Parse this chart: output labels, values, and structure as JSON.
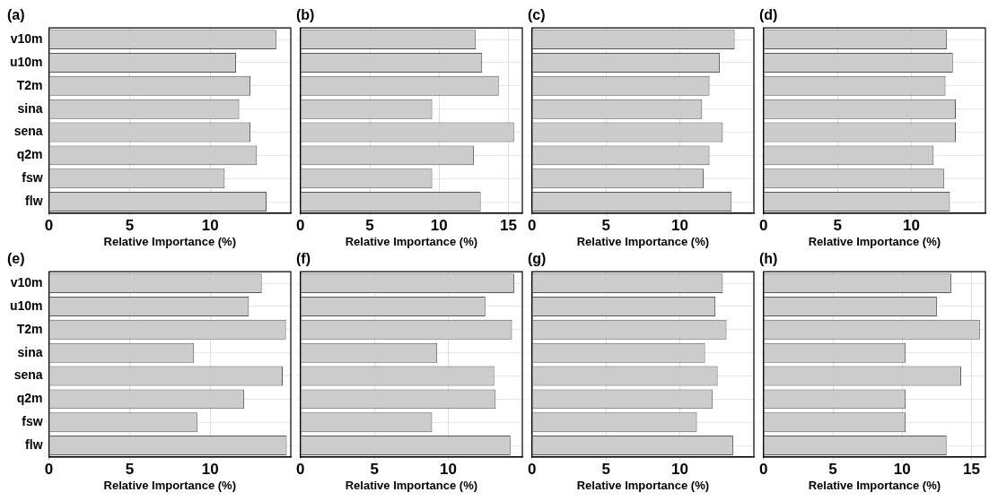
{
  "chart_data": [
    {
      "type": "bar",
      "orientation": "horizontal",
      "title": "(a)",
      "xlabel": "Relative Importance (%)",
      "categories": [
        "v10m",
        "u10m",
        "T2m",
        "sina",
        "sena",
        "q2m",
        "fsw",
        "flw"
      ],
      "values": [
        14.1,
        11.6,
        12.5,
        11.8,
        12.5,
        12.9,
        10.9,
        13.5
      ],
      "color": "#cccccc",
      "xlim": [
        0,
        15
      ],
      "xticks": [
        0,
        5,
        10
      ],
      "grid": true
    },
    {
      "type": "bar",
      "orientation": "horizontal",
      "title": "(b)",
      "xlabel": "Relative Importance (%)",
      "categories": [
        null,
        null,
        null,
        null,
        null,
        null,
        null,
        null
      ],
      "values": [
        12.65,
        13.1,
        14.3,
        9.5,
        15.4,
        12.5,
        9.5,
        13.0
      ],
      "color": "#cccccc",
      "xlim": [
        0,
        16
      ],
      "xticks": [
        0,
        5,
        10,
        15
      ],
      "grid": true,
      "tick_labels": "x"
    },
    {
      "type": "bar",
      "orientation": "horizontal",
      "title": "(c)",
      "xlabel": "Relative Importance (%)",
      "categories": [
        null,
        null,
        null,
        null,
        null,
        null,
        null,
        null
      ],
      "values": [
        13.7,
        12.7,
        12.0,
        11.5,
        12.9,
        12.0,
        11.6,
        13.5
      ],
      "color": "#cccccc",
      "xlim": [
        0,
        15
      ],
      "xticks": [
        0,
        5,
        10
      ],
      "grid": true,
      "tick_labels": "x"
    },
    {
      "type": "bar",
      "orientation": "horizontal",
      "title": "(d)",
      "xlabel": "Relative Importance (%)",
      "categories": [
        null,
        null,
        null,
        null,
        null,
        null,
        null,
        null
      ],
      "values": [
        12.4,
        12.8,
        12.3,
        13.0,
        13.0,
        11.5,
        12.2,
        12.6
      ],
      "color": "#cccccc",
      "xlim": [
        0,
        15
      ],
      "xticks": [
        0,
        5,
        10
      ],
      "grid": true,
      "tick_labels": "x"
    },
    {
      "type": "bar",
      "orientation": "horizontal",
      "title": "(e)",
      "xlabel": "Relative Importance (%)",
      "categories": [
        "v10m",
        "u10m",
        "T2m",
        "sina",
        "sena",
        "q2m",
        "fsw",
        "flw"
      ],
      "values": [
        13.2,
        12.4,
        14.7,
        9.0,
        14.5,
        12.1,
        9.2,
        14.75
      ],
      "color": "#cccccc",
      "xlim": [
        0,
        15
      ],
      "xticks": [
        0,
        5,
        10
      ],
      "grid": true
    },
    {
      "type": "bar",
      "orientation": "horizontal",
      "title": "(f)",
      "xlabel": "Relative Importance (%)",
      "categories": [
        null,
        null,
        null,
        null,
        null,
        null,
        null,
        null
      ],
      "values": [
        14.45,
        12.5,
        14.3,
        9.25,
        13.1,
        13.2,
        8.9,
        14.2
      ],
      "color": "#cccccc",
      "xlim": [
        0,
        15
      ],
      "xticks": [
        0,
        5,
        10
      ],
      "grid": true,
      "tick_labels": "x"
    },
    {
      "type": "bar",
      "orientation": "horizontal",
      "title": "(g)",
      "xlabel": "Relative Importance (%)",
      "categories": [
        null,
        null,
        null,
        null,
        null,
        null,
        null,
        null
      ],
      "values": [
        12.9,
        12.4,
        13.15,
        11.7,
        12.55,
        12.2,
        11.15,
        13.6
      ],
      "color": "#cccccc",
      "xlim": [
        0,
        15
      ],
      "xticks": [
        0,
        5,
        10
      ],
      "grid": true,
      "tick_labels": "x"
    },
    {
      "type": "bar",
      "orientation": "horizontal",
      "title": "(h)",
      "xlabel": "Relative Importance (%)",
      "categories": [
        null,
        null,
        null,
        null,
        null,
        null,
        null,
        null
      ],
      "values": [
        13.55,
        12.5,
        15.6,
        10.25,
        14.25,
        10.25,
        10.25,
        13.2
      ],
      "color": "#cccccc",
      "xlim": [
        0,
        16
      ],
      "xticks": [
        0,
        5,
        10,
        15
      ],
      "grid": true,
      "tick_labels": "x"
    }
  ]
}
